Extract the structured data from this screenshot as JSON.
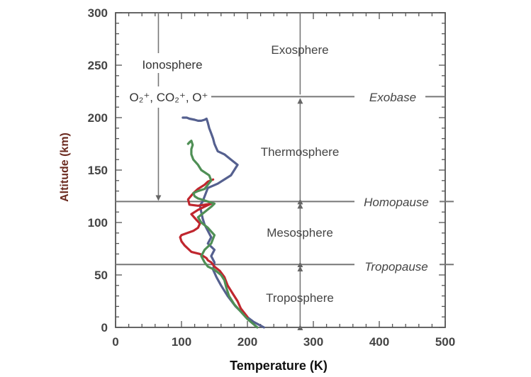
{
  "chart_data": {
    "type": "line",
    "xlabel": "Temperature (K)",
    "ylabel": "Altitude (km)",
    "xlim": [
      0,
      500
    ],
    "ylim": [
      0,
      300
    ],
    "xticks": [
      "0",
      "100",
      "200",
      "300",
      "400",
      "500"
    ],
    "yticks": [
      "0",
      "50",
      "100",
      "150",
      "200",
      "250",
      "300"
    ],
    "grid": false,
    "series": [
      {
        "color": "#55608f",
        "x": [
          225,
          210,
          195,
          182,
          170,
          160,
          153,
          148,
          150,
          145,
          150,
          140,
          145,
          140,
          135,
          132,
          130,
          128,
          132,
          140,
          155,
          175,
          185,
          175,
          165,
          155,
          152,
          150,
          148,
          145,
          142,
          140,
          138,
          135,
          130,
          125,
          120,
          112,
          108,
          102
        ],
        "y": [
          0,
          5,
          12,
          20,
          30,
          40,
          48,
          55,
          62,
          68,
          74,
          80,
          86,
          92,
          98,
          104,
          110,
          116,
          120,
          133,
          137,
          145,
          155,
          160,
          165,
          168,
          172,
          175,
          180,
          185,
          190,
          195,
          199,
          198,
          197,
          197,
          198,
          199,
          200,
          200
        ]
      },
      {
        "color": "#c0262e",
        "x": [
          200,
          190,
          185,
          178,
          170,
          165,
          158,
          150,
          145,
          140,
          138,
          128,
          115,
          110,
          105,
          100,
          98,
          100,
          118,
          125,
          128,
          122,
          115,
          125,
          138,
          145,
          125,
          112,
          110,
          118,
          125,
          135,
          140,
          148
        ],
        "y": [
          10,
          18,
          25,
          32,
          40,
          48,
          54,
          58,
          62,
          64,
          66,
          70,
          72,
          75,
          78,
          82,
          86,
          88,
          92,
          95,
          99,
          103,
          108,
          112,
          116,
          118,
          116,
          117,
          122,
          128,
          132,
          136,
          139,
          141
        ]
      },
      {
        "color": "#4f8f55",
        "x": [
          215,
          200,
          190,
          180,
          172,
          168,
          165,
          160,
          150,
          140,
          135,
          130,
          135,
          145,
          150,
          140,
          130,
          125,
          135,
          145,
          150,
          140,
          130,
          125,
          120,
          118,
          125,
          135,
          140,
          145,
          142,
          130,
          125,
          118,
          115,
          115,
          117,
          115,
          113,
          110
        ],
        "y": [
          0,
          8,
          15,
          22,
          30,
          38,
          45,
          50,
          55,
          58,
          62,
          68,
          74,
          80,
          88,
          95,
          100,
          105,
          110,
          115,
          118,
          120,
          122,
          123,
          125,
          128,
          130,
          132,
          136,
          140,
          145,
          150,
          155,
          160,
          165,
          170,
          174,
          178,
          177,
          175
        ]
      }
    ],
    "boundaries": [
      {
        "label": "Exobase",
        "y": 220
      },
      {
        "label": "Homopause",
        "y": 120
      },
      {
        "label": "Tropopause",
        "y": 60
      }
    ],
    "regions": [
      "Exosphere",
      "Thermosphere",
      "Mesosphere",
      "Troposphere"
    ],
    "ionosphere": {
      "label": "Ionosphere",
      "species": "O₂⁺, CO₂⁺, O⁺",
      "arrow_x": 65,
      "arrow_top": 300,
      "arrow_bottom": 120
    },
    "region_arrow_x": 280
  }
}
